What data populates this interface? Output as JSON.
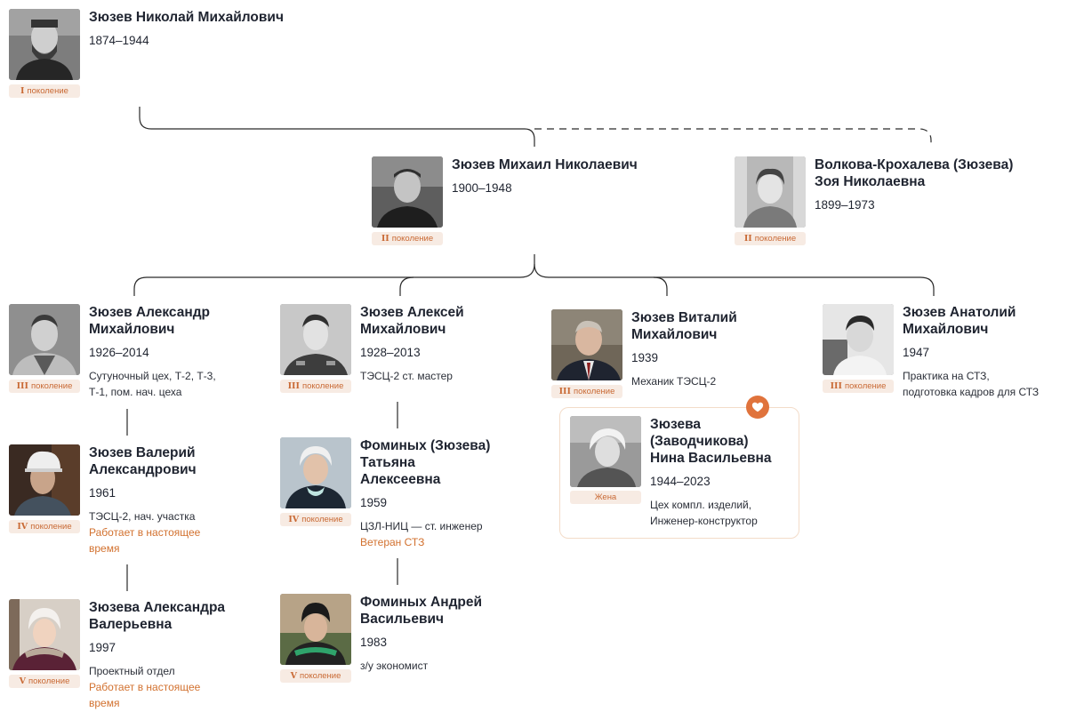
{
  "people": {
    "nikolay": {
      "name": "Зюзев Николай Михайлович",
      "years": "1874–1944",
      "gen_numeral": "I",
      "gen_word": "поколение"
    },
    "mikhail": {
      "name": "Зюзев Михаил Николаевич",
      "years": "1900–1948",
      "gen_numeral": "II",
      "gen_word": "поколение"
    },
    "zoya": {
      "name_line1": "Волкова-Крохалева (Зюзева)",
      "name_line2": "Зоя Николаевна",
      "years": "1899–1973",
      "gen_numeral": "II",
      "gen_word": "поколение"
    },
    "aleksandr": {
      "name_line1": "Зюзев Александр",
      "name_line2": "Михайлович",
      "years": "1926–2014",
      "note_line1": "Сутуночный цех, Т-2, Т-3,",
      "note_line2": "Т-1, пом. нач. цеха",
      "gen_numeral": "III",
      "gen_word": "поколение"
    },
    "aleksey": {
      "name_line1": "Зюзев Алексей",
      "name_line2": "Михайлович",
      "years": "1928–2013",
      "note_line1": "ТЭСЦ-2 ст. мастер",
      "gen_numeral": "III",
      "gen_word": "поколение"
    },
    "vitaliy": {
      "name_line1": "Зюзев Виталий",
      "name_line2": "Михайлович",
      "years": "1939",
      "note_line1": "Механик ТЭСЦ-2",
      "gen_numeral": "III",
      "gen_word": "поколение"
    },
    "anatoliy": {
      "name_line1": "Зюзев Анатолий",
      "name_line2": "Михайлович",
      "years": "1947",
      "note_line1": "Практика на СТЗ,",
      "note_line2": "подготовка кадров для СТЗ",
      "gen_numeral": "III",
      "gen_word": "поколение"
    },
    "nina": {
      "name_line1": "Зюзева",
      "name_line2": "(Заводчикова)",
      "name_line3": "Нина Васильевна",
      "years": "1944–2023",
      "note_line1": "Цех компл. изделий,",
      "note_line2": "Инженер-конструктор",
      "role": "Жена"
    },
    "valeriy": {
      "name_line1": "Зюзев Валерий",
      "name_line2": "Александрович",
      "years": "1961",
      "note_line1": "ТЭСЦ-2, нач. участка",
      "status_line1": "Работает в настоящее",
      "status_line2": "время",
      "gen_numeral": "IV",
      "gen_word": "поколение"
    },
    "tatyana": {
      "name_line1": "Фоминых (Зюзева)",
      "name_line2": "Татьяна",
      "name_line3": "Алексеевна",
      "years": "1959",
      "note_line1": "ЦЗЛ-НИЦ — ст. инженер",
      "status_line1": "Ветеран СТЗ",
      "gen_numeral": "IV",
      "gen_word": "поколение"
    },
    "aleksandra": {
      "name_line1": "Зюзева Александра",
      "name_line2": "Валерьевна",
      "years": "1997",
      "note_line1": "Проектный отдел",
      "status_line1": "Работает в настоящее",
      "status_line2": "время",
      "gen_numeral": "V",
      "gen_word": "поколение"
    },
    "andrey": {
      "name_line1": "Фоминых Андрей",
      "name_line2": "Васильевич",
      "years": "1983",
      "note_line1": "з/у экономист",
      "gen_numeral": "V",
      "gen_word": "поколение"
    }
  },
  "colors": {
    "accent": "#d2712f",
    "badge_bg": "#f7ebe3",
    "line": "#2a2a2a",
    "card_border": "#f3dcc9"
  },
  "icons": {
    "spouse": "heart-icon",
    "photo": "person-photo"
  }
}
